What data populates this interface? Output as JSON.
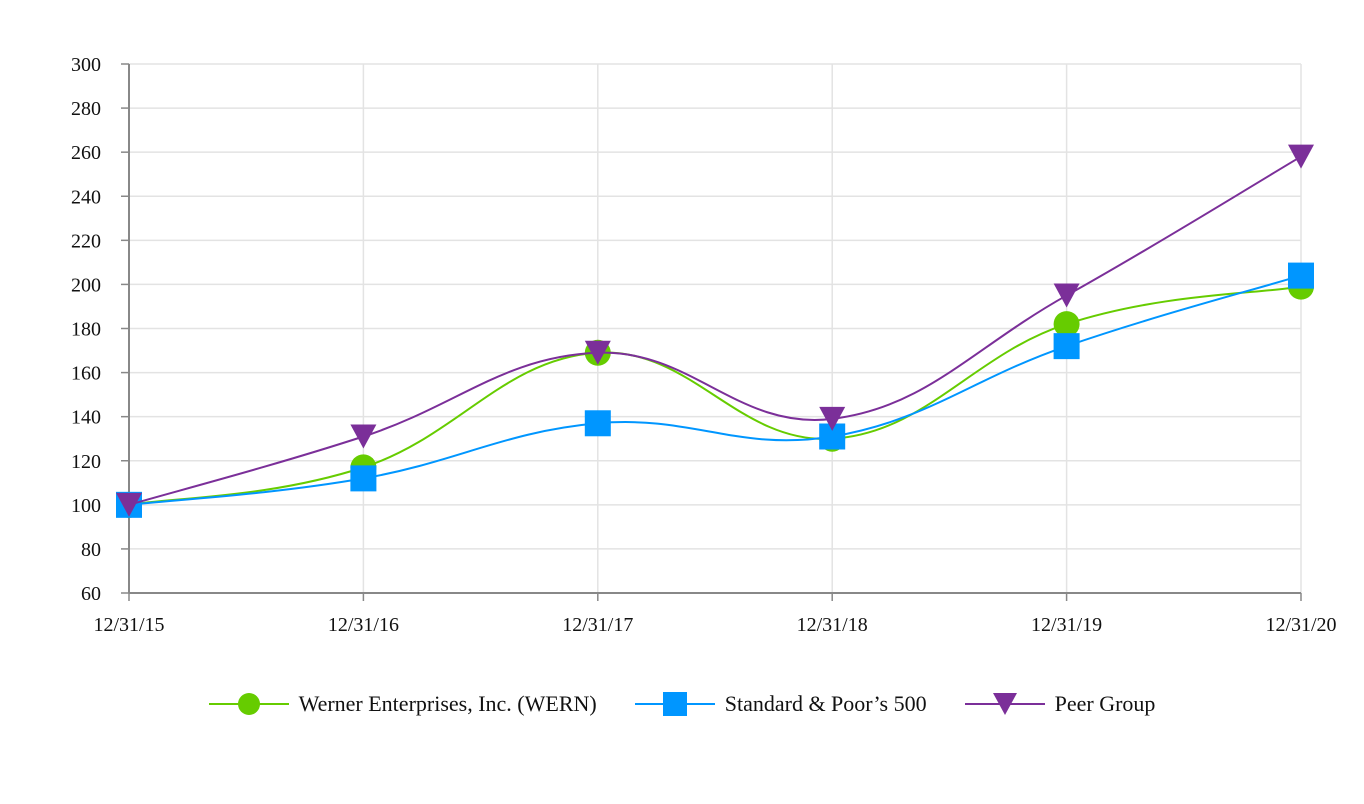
{
  "chart_data": {
    "type": "line",
    "title": "",
    "xlabel": "",
    "ylabel": "",
    "categories": [
      "12/31/15",
      "12/31/16",
      "12/31/17",
      "12/31/18",
      "12/31/19",
      "12/31/20"
    ],
    "ylim": [
      60,
      300
    ],
    "yticks": [
      60,
      80,
      100,
      120,
      140,
      160,
      180,
      200,
      220,
      240,
      260,
      280,
      300
    ],
    "grid": true,
    "legend_position": "bottom",
    "series": [
      {
        "name": "Werner Enterprises, Inc. (WERN)",
        "color": "#66cc00",
        "marker": "circle",
        "values": [
          100,
          117,
          169,
          130,
          182,
          199
        ]
      },
      {
        "name": "Standard & Poor’s 500",
        "color": "#0096ff",
        "marker": "square",
        "values": [
          100,
          112,
          137,
          131,
          172,
          204
        ]
      },
      {
        "name": "Peer Group",
        "color": "#7b2f99",
        "marker": "triangle-down",
        "values": [
          100,
          131,
          169,
          139,
          195,
          258
        ]
      }
    ]
  }
}
